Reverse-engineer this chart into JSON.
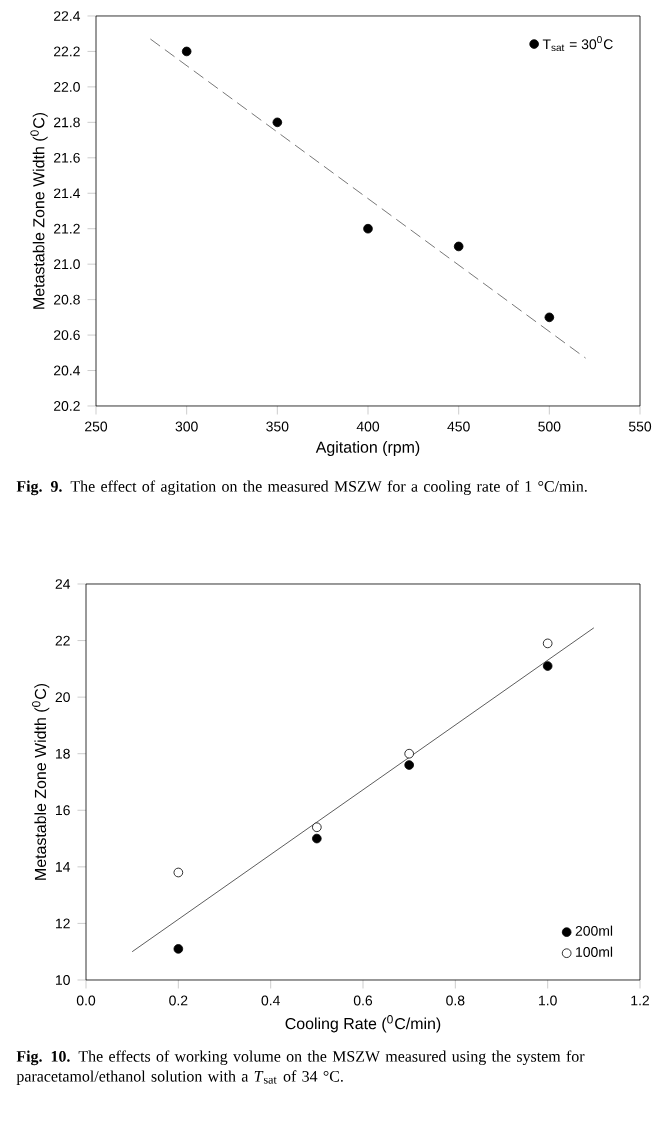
{
  "chart_data": [
    {
      "type": "scatter",
      "xlabel": "Agitation (rpm)",
      "ylabel": "Metastable Zone Width ($^{0}$C)",
      "xlim": [
        250,
        550
      ],
      "xticks": [
        250,
        300,
        350,
        400,
        450,
        500,
        550
      ],
      "ylim": [
        20.2,
        22.4
      ],
      "yticks": [
        20.2,
        20.4,
        20.6,
        20.8,
        {
          "value": 21,
          "label": "21.0"
        },
        21.2,
        21.4,
        21.6,
        21.8,
        {
          "value": 22,
          "label": "22.0"
        },
        22.2,
        22.4
      ],
      "legend": "top right",
      "series": [
        {
          "name": "T$_{sat}$ = 30$^{0}$C",
          "marker": "circle",
          "color": "#000000",
          "x": [
            300,
            350,
            400,
            450,
            500
          ],
          "values": [
            22.2,
            21.8,
            21.2,
            21.1,
            20.7
          ]
        },
        {
          "type": "line",
          "marker": "none",
          "line_style": "dashed",
          "color": "#555555",
          "x": [
            280,
            520
          ],
          "values": [
            22.27,
            20.47
          ]
        }
      ],
      "annotations": [
        "**Fig. 9.** The effect of agitation on the measured MSZW for a cooling rate of 1 °C/min."
      ]
    },
    {
      "type": "scatter",
      "xlabel": "Cooling Rate ($^{0}$C/min)",
      "ylabel": "Metastable Zone Width ($^{0}$C)",
      "xlim": [
        0,
        1.2
      ],
      "xticks": [
        {
          "value": 0,
          "label": "0.0"
        },
        0.2,
        0.4,
        0.6,
        0.8,
        {
          "value": 1,
          "label": "1.0"
        },
        1.2
      ],
      "ylim": [
        10,
        24
      ],
      "yticks": [
        10,
        12,
        14,
        16,
        18,
        20,
        22,
        24
      ],
      "legend": "bottom right",
      "series": [
        {
          "name": "200ml",
          "marker": "circle",
          "color": "#000000",
          "x": [
            0.2,
            0.5,
            0.7,
            1.0
          ],
          "values": [
            11.1,
            15.0,
            17.6,
            21.1
          ]
        },
        {
          "name": "100ml",
          "marker": "circle",
          "color": "#ffffff",
          "x": [
            0.2,
            0.5,
            0.7,
            1.0
          ],
          "values": [
            13.8,
            15.4,
            18.0,
            21.9
          ]
        },
        {
          "type": "line",
          "marker": "none",
          "line_style": "solid",
          "color": "#333333",
          "x": [
            0.1,
            1.1
          ],
          "values": [
            11.0,
            22.45
          ]
        }
      ],
      "annotations": [
        "**Fig. 10.** The effects of working volume on the MSZW measured using the system for paracetamol/ethanol solution with a *T*$_{sat}$ of 34 °C."
      ]
    }
  ]
}
